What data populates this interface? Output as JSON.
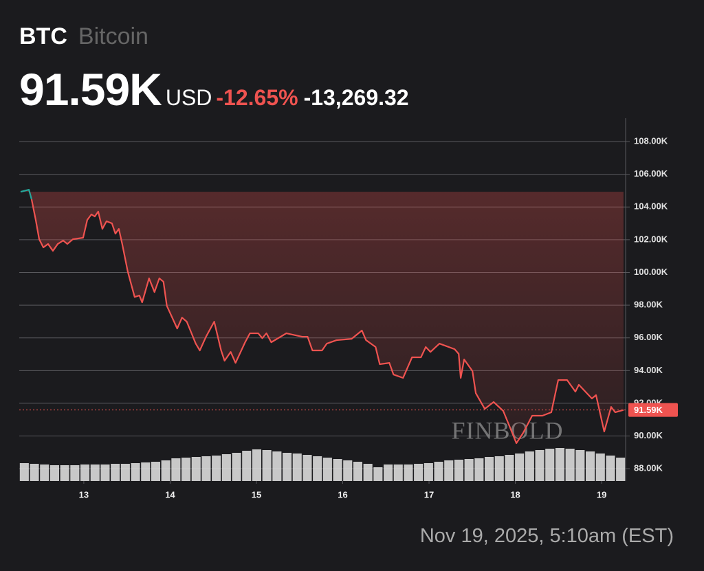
{
  "chart_data": {
    "type": "line",
    "symbol": "BTC",
    "name": "Bitcoin",
    "currency": "USD",
    "last_price": {
      "value": 91590,
      "label": "91.59K"
    },
    "change_percent": {
      "value": -12.65,
      "label": "-12.65%"
    },
    "change": {
      "value": -13269.32,
      "label": "-13,269.32"
    },
    "timestamp": "Nov 19, 2025, 5:10am (EST)",
    "watermark": "FINBOLD",
    "x": [
      12.268,
      12.364,
      12.395,
      12.443,
      12.483,
      12.531,
      12.586,
      12.642,
      12.698,
      12.761,
      12.809,
      12.873,
      12.992,
      13.04,
      13.088,
      13.127,
      13.167,
      13.215,
      13.263,
      13.326,
      13.366,
      13.406,
      13.445,
      13.509,
      13.589,
      13.644,
      13.676,
      13.756,
      13.819,
      13.875,
      13.923,
      13.962,
      14.082,
      14.138,
      14.193,
      14.297,
      14.344,
      14.416,
      14.511,
      14.591,
      14.631,
      14.702,
      14.758,
      14.869,
      14.925,
      15.021,
      15.068,
      15.116,
      15.172,
      15.347,
      15.53,
      15.593,
      15.649,
      15.76,
      15.816,
      15.928,
      16.103,
      16.222,
      16.27,
      16.381,
      16.429,
      16.54,
      16.588,
      16.699,
      16.803,
      16.906,
      16.962,
      17.017,
      17.121,
      17.296,
      17.344,
      17.367,
      17.407,
      17.503,
      17.542,
      17.646,
      17.749,
      17.86,
      17.964,
      18.012,
      18.091,
      18.195,
      18.314,
      18.417,
      18.497,
      18.6,
      18.696,
      18.736,
      18.887,
      18.935,
      19.03,
      19.11,
      19.157,
      19.253
    ],
    "series": [
      {
        "color": "#ef5350",
        "up_color": "#26a69a",
        "values": [
          104930,
          105060,
          104470,
          103210,
          102030,
          101530,
          101740,
          101320,
          101740,
          101950,
          101740,
          102030,
          102120,
          103210,
          103550,
          103420,
          103720,
          102660,
          103130,
          103000,
          102370,
          102660,
          101740,
          100060,
          98500,
          98590,
          98170,
          99640,
          98800,
          99640,
          99430,
          97960,
          96570,
          97240,
          96990,
          95650,
          95230,
          96070,
          96990,
          95230,
          94600,
          95140,
          94470,
          95730,
          96280,
          96280,
          95980,
          96280,
          95730,
          96280,
          96070,
          96070,
          95230,
          95230,
          95650,
          95860,
          95940,
          96450,
          95860,
          95440,
          94390,
          94470,
          93760,
          93550,
          94810,
          94810,
          95440,
          95140,
          95650,
          95310,
          95020,
          93550,
          94680,
          93970,
          92620,
          91660,
          92080,
          91530,
          90190,
          89560,
          90190,
          91240,
          91240,
          91450,
          93420,
          93420,
          92710,
          93130,
          92290,
          92500,
          90270,
          91780,
          91450,
          91590
        ]
      }
    ],
    "volume": {
      "color": "#e6e6e6",
      "values": [
        26,
        25,
        24,
        23,
        23,
        23,
        24,
        24,
        24,
        25,
        25,
        26,
        27,
        28,
        30,
        33,
        34,
        35,
        36,
        37,
        39,
        41,
        44,
        46,
        45,
        43,
        41,
        40,
        38,
        36,
        34,
        32,
        30,
        28,
        25,
        20,
        24,
        24,
        24,
        25,
        26,
        28,
        30,
        31,
        32,
        33,
        35,
        36,
        38,
        40,
        43,
        45,
        47,
        48,
        47,
        45,
        43,
        40,
        37,
        34
      ]
    },
    "xlim": [
      12.252,
      19.278
    ],
    "xticks": [
      13,
      14,
      15,
      16,
      17,
      18,
      19
    ],
    "ylim": [
      87250,
      109430
    ],
    "yticks": [
      {
        "value": 88000,
        "label": "88.00K"
      },
      {
        "value": 90000,
        "label": "90.00K"
      },
      {
        "value": 92000,
        "label": "92.00K"
      },
      {
        "value": 94000,
        "label": "94.00K"
      },
      {
        "value": 96000,
        "label": "96.00K"
      },
      {
        "value": 98000,
        "label": "98.00K"
      },
      {
        "value": 100000,
        "label": "100.00K"
      },
      {
        "value": 102000,
        "label": "102.00K"
      },
      {
        "value": 104000,
        "label": "104.00K"
      },
      {
        "value": 106000,
        "label": "106.00K"
      },
      {
        "value": 108000,
        "label": "108.00K"
      }
    ],
    "grid": true
  }
}
